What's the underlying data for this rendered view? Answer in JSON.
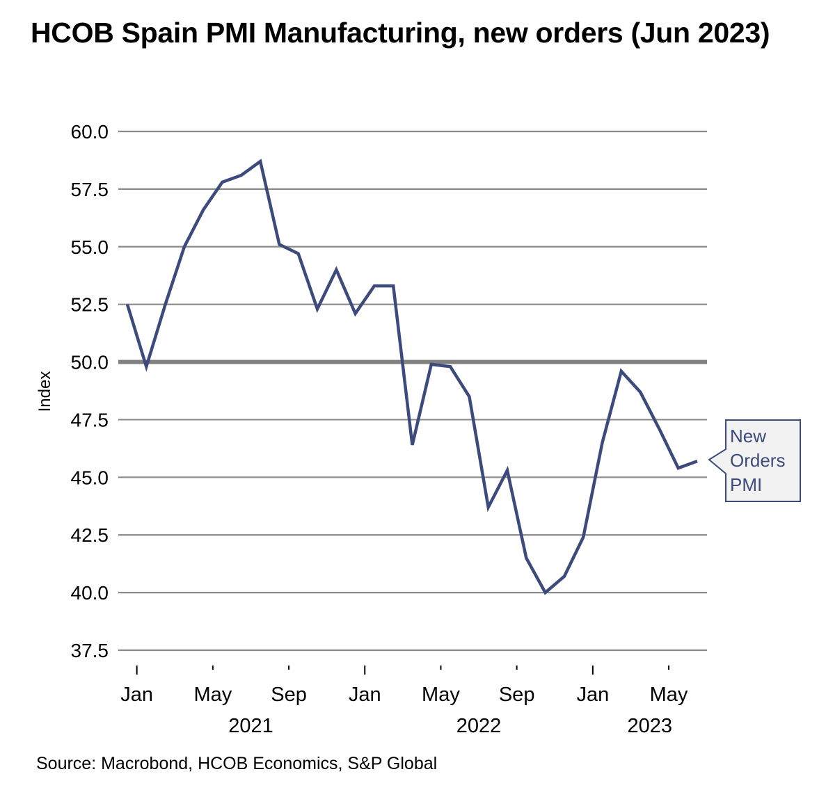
{
  "title": "HCOB Spain PMI Manufacturing, new orders (Jun 2023)",
  "source": "Source: Macrobond, HCOB Economics, S&P Global",
  "colors": {
    "series": "#3d4b7c",
    "grid": "#8a8a8a",
    "reference_line": "#808080",
    "callout_fill": "#f2f2f2",
    "callout_border": "#3d4b7c"
  },
  "chart_data": {
    "type": "line",
    "title": "HCOB Spain PMI Manufacturing, new orders (Jun 2023)",
    "xlabel": "",
    "ylabel": "Index",
    "ylim": [
      37.5,
      60.0
    ],
    "yticks": [
      "60.0",
      "57.5",
      "55.0",
      "52.5",
      "50.0",
      "47.5",
      "45.0",
      "42.5",
      "40.0",
      "37.5"
    ],
    "ytick_values": [
      60.0,
      57.5,
      55.0,
      52.5,
      50.0,
      47.5,
      45.0,
      42.5,
      40.0,
      37.5
    ],
    "grid": true,
    "reference_line": 50.0,
    "x": [
      "2020-12",
      "2021-01",
      "2021-02",
      "2021-03",
      "2021-04",
      "2021-05",
      "2021-06",
      "2021-07",
      "2021-08",
      "2021-09",
      "2021-10",
      "2021-11",
      "2021-12",
      "2022-01",
      "2022-02",
      "2022-03",
      "2022-04",
      "2022-05",
      "2022-06",
      "2022-07",
      "2022-08",
      "2022-09",
      "2022-10",
      "2022-11",
      "2022-12",
      "2023-01",
      "2023-02",
      "2023-03",
      "2023-04",
      "2023-05",
      "2023-06"
    ],
    "xticks": [
      {
        "label": "Jan",
        "month_index": 1
      },
      {
        "label": "May",
        "month_index": 5
      },
      {
        "label": "Sep",
        "month_index": 9
      },
      {
        "label": "Jan",
        "month_index": 13
      },
      {
        "label": "May",
        "month_index": 17
      },
      {
        "label": "Sep",
        "month_index": 21
      },
      {
        "label": "Jan",
        "month_index": 25
      },
      {
        "label": "May",
        "month_index": 29
      }
    ],
    "year_labels": [
      {
        "label": "2021",
        "month_index": 7
      },
      {
        "label": "2022",
        "month_index": 19
      },
      {
        "label": "2023",
        "month_index": 28
      }
    ],
    "series": [
      {
        "name": "New Orders PMI",
        "values": [
          52.5,
          49.8,
          52.5,
          55.0,
          56.6,
          57.8,
          58.1,
          58.7,
          55.1,
          54.7,
          52.3,
          54.0,
          52.1,
          53.3,
          53.3,
          46.4,
          49.9,
          49.8,
          48.5,
          43.7,
          45.3,
          41.5,
          40.0,
          40.7,
          42.4,
          46.5,
          49.6,
          48.7,
          47.1,
          45.4,
          45.7
        ]
      }
    ],
    "legend": {
      "placement": "right",
      "callout_label_lines": [
        "New",
        "Orders",
        "PMI"
      ]
    }
  }
}
